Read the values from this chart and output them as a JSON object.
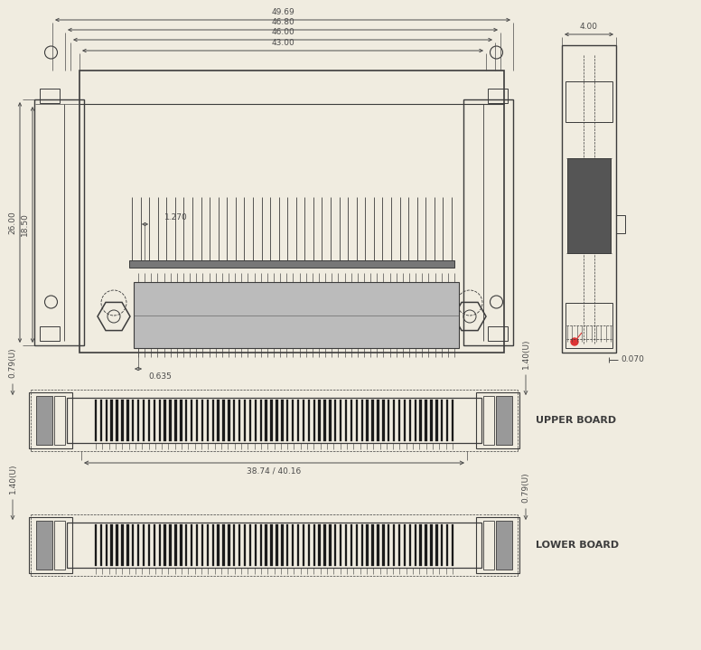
{
  "bg_color": "#f0ece0",
  "line_color": "#3c3c3c",
  "dim_color": "#4a4a4a",
  "fs": 6.5,
  "fs_label": 8.0,
  "top_dims": [
    "49.69",
    "46.80",
    "46.00",
    "43.00"
  ],
  "v_dims_left": [
    "26.00",
    "18.50"
  ],
  "pin_dims": [
    "1.270",
    "0.635"
  ],
  "side_dims_top": "4.00",
  "side_dims_bot": "0.070",
  "board_dim": "38.74 / 40.16",
  "upper_label": "UPPER BOARD",
  "lower_label": "LOWER BOARD",
  "ub_dims_left": "0.79(U)",
  "ub_dims_right": "1.40(U)",
  "lb_dims_left": "1.40(U)",
  "lb_dims_right": "0.79(U)"
}
